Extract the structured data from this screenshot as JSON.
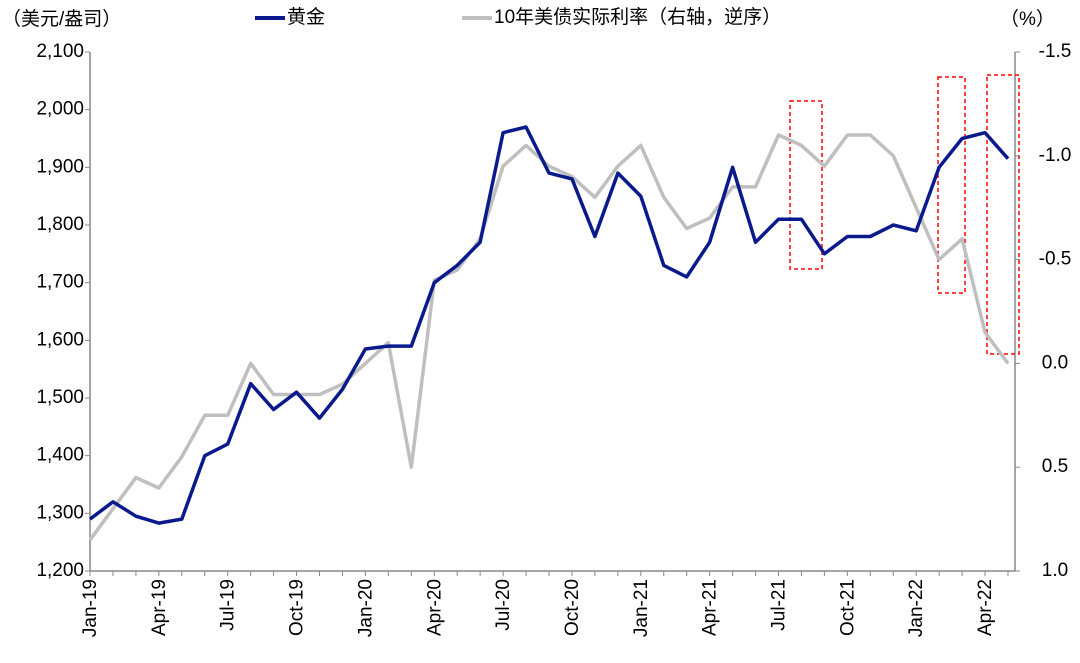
{
  "chart_data": {
    "type": "line",
    "y_label": "（美元/盎司）",
    "y2_label": "（%）",
    "categories": [
      "Jan-19",
      null,
      null,
      "Apr-19",
      null,
      null,
      "Jul-19",
      null,
      null,
      "Oct-19",
      null,
      null,
      "Jan-20",
      null,
      null,
      "Apr-20",
      null,
      null,
      "Jul-20",
      null,
      null,
      "Oct-20",
      null,
      null,
      "Jan-21",
      null,
      null,
      "Apr-21",
      null,
      null,
      "Jul-21",
      null,
      null,
      "Oct-21",
      null,
      null,
      "Jan-22",
      null,
      null,
      "Apr-22",
      null
    ],
    "series": [
      {
        "name": "黄金",
        "color": "#0a1a8c",
        "axis": "y",
        "values": [
          1290,
          1320,
          1295,
          1283,
          1290,
          1400,
          1420,
          1525,
          1480,
          1510,
          1465,
          1515,
          1585,
          1590,
          1590,
          1700,
          1730,
          1770,
          1960,
          1970,
          1890,
          1880,
          1780,
          1890,
          1850,
          1730,
          1710,
          1770,
          1900,
          1770,
          1810,
          1810,
          1750,
          1780,
          1780,
          1800,
          1790,
          1900,
          1950,
          1960,
          1915
        ]
      },
      {
        "name": "10年美债实际利率（右轴，逆序）",
        "color": "#bfbfbf",
        "axis": "y2",
        "values": [
          0.85,
          0.7,
          0.55,
          0.6,
          0.45,
          0.25,
          0.25,
          0.0,
          0.15,
          0.15,
          0.15,
          0.1,
          0.0,
          -0.1,
          0.5,
          -0.4,
          -0.45,
          -0.6,
          -0.95,
          -1.05,
          -0.95,
          -0.9,
          -0.8,
          -0.95,
          -1.05,
          -0.8,
          -0.65,
          -0.7,
          -0.85,
          -0.85,
          -1.1,
          -1.05,
          -0.95,
          -1.1,
          -1.1,
          -1.0,
          -0.75,
          -0.5,
          -0.6,
          -0.15,
          0.0
        ]
      }
    ],
    "ylim": [
      1200,
      2100
    ],
    "yticks": [
      {
        "value": 1200,
        "label": "1,200"
      },
      {
        "value": 1300,
        "label": "1,300"
      },
      {
        "value": 1400,
        "label": "1,400"
      },
      {
        "value": 1500,
        "label": "1,500"
      },
      {
        "value": 1600,
        "label": "1,600"
      },
      {
        "value": 1700,
        "label": "1,700"
      },
      {
        "value": 1800,
        "label": "1,800"
      },
      {
        "value": 1900,
        "label": "1,900"
      },
      {
        "value": 2000,
        "label": "2,000"
      },
      {
        "value": 2100,
        "label": "2,100"
      }
    ],
    "y2lim": [
      -1.5,
      1.0
    ],
    "y2ticks": [
      {
        "value": -1.5,
        "label": "-1.5"
      },
      {
        "value": -1.0,
        "label": "-1.0"
      },
      {
        "value": -0.5,
        "label": "-0.5"
      },
      {
        "value": 0.0,
        "label": "0.0"
      },
      {
        "value": 0.5,
        "label": "0.5"
      },
      {
        "value": 1.0,
        "label": "1.0"
      }
    ],
    "y2_inverted": true,
    "grid": false
  }
}
